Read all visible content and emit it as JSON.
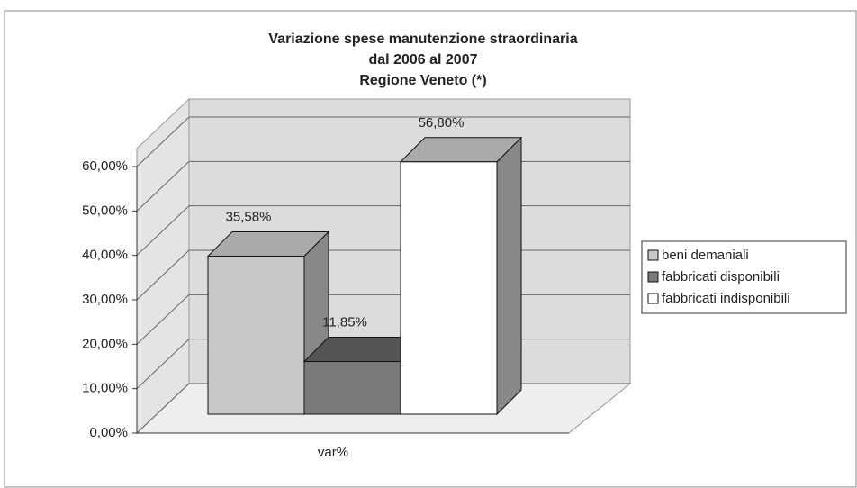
{
  "chart_data": {
    "type": "bar3d",
    "title": [
      "Variazione spese manutenzione straordinaria",
      "dal 2006 al 2007",
      "Regione Veneto (*)"
    ],
    "categories": [
      "var%"
    ],
    "series": [
      {
        "name": "beni demaniali",
        "color": "#c8c8c8",
        "values": [
          35.58
        ],
        "value_labels": [
          "35,58%"
        ]
      },
      {
        "name": "fabbricati disponibili",
        "color": "#7a7a7a",
        "values": [
          11.85
        ],
        "value_labels": [
          "11,85%"
        ]
      },
      {
        "name": "fabbricati indisponibili",
        "color": "#ffffff",
        "values": [
          56.8
        ],
        "value_labels": [
          "56,80%"
        ]
      }
    ],
    "ylim": [
      0,
      60
    ],
    "yticks": [
      {
        "value": 0,
        "label": "0,00%"
      },
      {
        "value": 10,
        "label": "10,00%"
      },
      {
        "value": 20,
        "label": "20,00%"
      },
      {
        "value": 30,
        "label": "30,00%"
      },
      {
        "value": 40,
        "label": "40,00%"
      },
      {
        "value": 50,
        "label": "50,00%"
      },
      {
        "value": 60,
        "label": "60,00%"
      }
    ],
    "grid": true,
    "legend": "right"
  }
}
